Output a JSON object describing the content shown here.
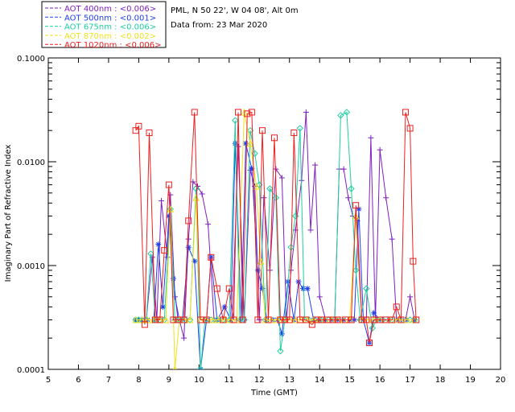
{
  "chart_data": {
    "type": "line",
    "info": {
      "site": "PML, N 50 22', W 04 08', Alt 0m",
      "date": "Data from: 23 Mar 2020"
    },
    "xlabel": "Time (GMT)",
    "ylabel": "Imaginary Part of Refractive Index",
    "xlim": [
      5,
      20
    ],
    "ylim": [
      0.0001,
      0.1
    ],
    "yscale": "log",
    "xticks": [
      "5",
      "6",
      "7",
      "8",
      "9",
      "10",
      "11",
      "12",
      "13",
      "14",
      "15",
      "16",
      "17",
      "18",
      "19",
      "20"
    ],
    "yticks": [
      {
        "v": 0.1,
        "label": "0.1000"
      },
      {
        "v": 0.01,
        "label": "0.0100"
      },
      {
        "v": 0.001,
        "label": "0.0010"
      },
      {
        "v": 0.0001,
        "label": "0.0001"
      }
    ],
    "legend_position": "top-left",
    "series": [
      {
        "name": "AOT 400nm : <0.006>",
        "color": "#7f1fbf",
        "marker": "plus",
        "points": [
          [
            7.9,
            0.0003
          ],
          [
            8.0,
            0.0003
          ],
          [
            8.1,
            0.0003
          ],
          [
            8.25,
            0.0003
          ],
          [
            8.45,
            0.0012
          ],
          [
            8.6,
            0.0003
          ],
          [
            8.75,
            0.0042
          ],
          [
            8.95,
            0.0012
          ],
          [
            9.05,
            0.0048
          ],
          [
            9.2,
            0.0005
          ],
          [
            9.35,
            0.0003
          ],
          [
            9.5,
            0.0002
          ],
          [
            9.65,
            0.0018
          ],
          [
            9.8,
            0.0064
          ],
          [
            9.95,
            0.0058
          ],
          [
            10.1,
            0.0049
          ],
          [
            10.3,
            0.0025
          ],
          [
            10.5,
            0.0003
          ],
          [
            10.7,
            0.0003
          ],
          [
            10.9,
            0.0003
          ],
          [
            11.1,
            0.0003
          ],
          [
            11.3,
            0.014
          ],
          [
            11.5,
            0.0003
          ],
          [
            11.7,
            0.0083
          ],
          [
            11.85,
            0.0058
          ],
          [
            12.0,
            0.0003
          ],
          [
            12.15,
            0.0045
          ],
          [
            12.35,
            0.0009
          ],
          [
            12.55,
            0.0085
          ],
          [
            12.75,
            0.007
          ],
          [
            12.9,
            0.0003
          ],
          [
            13.05,
            0.0009
          ],
          [
            13.2,
            0.0022
          ],
          [
            13.4,
            0.0066
          ],
          [
            13.55,
            0.03
          ],
          [
            13.7,
            0.0022
          ],
          [
            13.85,
            0.0093
          ],
          [
            14.0,
            0.0005
          ],
          [
            14.2,
            0.0003
          ],
          [
            14.35,
            0.0003
          ],
          [
            14.5,
            0.0003
          ],
          [
            14.65,
            0.0085
          ],
          [
            14.8,
            0.0085
          ],
          [
            14.95,
            0.0045
          ],
          [
            15.1,
            0.003
          ],
          [
            15.25,
            0.0027
          ],
          [
            15.4,
            0.0003
          ],
          [
            15.55,
            0.0003
          ],
          [
            15.7,
            0.017
          ],
          [
            15.85,
            0.0003
          ],
          [
            16.0,
            0.013
          ],
          [
            16.2,
            0.0045
          ],
          [
            16.4,
            0.0018
          ],
          [
            16.55,
            0.0003
          ],
          [
            16.7,
            0.0003
          ],
          [
            16.85,
            0.0003
          ],
          [
            17.0,
            0.0005
          ],
          [
            17.15,
            0.0003
          ]
        ]
      },
      {
        "name": "AOT 500nm : <0.001>",
        "color": "#1f3fef",
        "marker": "star",
        "points": [
          [
            7.9,
            0.0003
          ],
          [
            8.0,
            0.0003
          ],
          [
            8.1,
            0.0003
          ],
          [
            8.3,
            0.0003
          ],
          [
            8.5,
            0.0003
          ],
          [
            8.65,
            0.0016
          ],
          [
            8.8,
            0.0004
          ],
          [
            9.0,
            0.003
          ],
          [
            9.15,
            0.00075
          ],
          [
            9.3,
            0.0003
          ],
          [
            9.45,
            0.0003
          ],
          [
            9.65,
            0.0015
          ],
          [
            9.85,
            0.0011
          ],
          [
            10.05,
            0.0001
          ],
          [
            10.25,
            0.0003
          ],
          [
            10.4,
            0.0012
          ],
          [
            10.6,
            0.0003
          ],
          [
            10.85,
            0.0004
          ],
          [
            11.05,
            0.0003
          ],
          [
            11.2,
            0.015
          ],
          [
            11.4,
            0.0003
          ],
          [
            11.55,
            0.015
          ],
          [
            11.75,
            0.0086
          ],
          [
            11.95,
            0.0009
          ],
          [
            12.1,
            0.0006
          ],
          [
            12.25,
            0.0003
          ],
          [
            12.45,
            0.0003
          ],
          [
            12.6,
            0.0003
          ],
          [
            12.75,
            0.00022
          ],
          [
            12.95,
            0.0007
          ],
          [
            13.15,
            0.0003
          ],
          [
            13.3,
            0.0007
          ],
          [
            13.45,
            0.0006
          ],
          [
            13.6,
            0.0006
          ],
          [
            13.8,
            0.0003
          ],
          [
            14.0,
            0.0003
          ],
          [
            14.2,
            0.0003
          ],
          [
            14.4,
            0.0003
          ],
          [
            14.6,
            0.0003
          ],
          [
            14.8,
            0.0003
          ],
          [
            15.0,
            0.0003
          ],
          [
            15.15,
            0.0003
          ],
          [
            15.3,
            0.0035
          ],
          [
            15.45,
            0.0003
          ],
          [
            15.65,
            0.00018
          ],
          [
            15.8,
            0.00035
          ],
          [
            16.0,
            0.0003
          ],
          [
            16.3,
            0.0003
          ],
          [
            16.6,
            0.0003
          ],
          [
            16.9,
            0.0003
          ],
          [
            17.15,
            0.0003
          ]
        ]
      },
      {
        "name": "AOT 675nm : <0.006>",
        "color": "#1fcf9f",
        "marker": "diamond",
        "points": [
          [
            7.9,
            0.0003
          ],
          [
            8.0,
            0.0003
          ],
          [
            8.1,
            0.0003
          ],
          [
            8.25,
            0.0003
          ],
          [
            8.4,
            0.0013
          ],
          [
            8.55,
            0.0003
          ],
          [
            8.7,
            0.0003
          ],
          [
            8.85,
            0.0003
          ],
          [
            9.05,
            0.0035
          ],
          [
            9.2,
            0.0003
          ],
          [
            9.35,
            0.0003
          ],
          [
            9.55,
            0.0003
          ],
          [
            9.7,
            0.0003
          ],
          [
            9.9,
            0.0055
          ],
          [
            10.05,
            0.0001
          ],
          [
            10.2,
            0.0003
          ],
          [
            10.4,
            0.0003
          ],
          [
            10.6,
            0.0003
          ],
          [
            10.8,
            0.0003
          ],
          [
            11.0,
            0.0003
          ],
          [
            11.2,
            0.025
          ],
          [
            11.35,
            0.0003
          ],
          [
            11.5,
            0.0003
          ],
          [
            11.7,
            0.02
          ],
          [
            11.85,
            0.012
          ],
          [
            12.0,
            0.006
          ],
          [
            12.2,
            0.0003
          ],
          [
            12.35,
            0.0055
          ],
          [
            12.55,
            0.0045
          ],
          [
            12.7,
            0.00015
          ],
          [
            12.85,
            0.0003
          ],
          [
            13.05,
            0.0015
          ],
          [
            13.2,
            0.003
          ],
          [
            13.35,
            0.021
          ],
          [
            13.5,
            0.0003
          ],
          [
            13.65,
            0.0003
          ],
          [
            13.85,
            0.0003
          ],
          [
            14.05,
            0.0003
          ],
          [
            14.3,
            0.0003
          ],
          [
            14.5,
            0.0003
          ],
          [
            14.7,
            0.028
          ],
          [
            14.9,
            0.03
          ],
          [
            15.05,
            0.0055
          ],
          [
            15.2,
            0.0009
          ],
          [
            15.35,
            0.0003
          ],
          [
            15.55,
            0.0006
          ],
          [
            15.75,
            0.00025
          ],
          [
            15.9,
            0.0003
          ],
          [
            16.1,
            0.0003
          ],
          [
            16.4,
            0.0003
          ],
          [
            16.7,
            0.0003
          ],
          [
            17.0,
            0.0003
          ],
          [
            17.15,
            0.0003
          ]
        ]
      },
      {
        "name": "AOT 870nm : <0.002>",
        "color": "#f0e020",
        "marker": "triangle",
        "points": [
          [
            7.9,
            0.0003
          ],
          [
            8.1,
            0.0003
          ],
          [
            8.3,
            0.0003
          ],
          [
            8.5,
            0.0003
          ],
          [
            8.7,
            0.0003
          ],
          [
            8.9,
            0.0003
          ],
          [
            9.05,
            0.0035
          ],
          [
            9.2,
            0.0001
          ],
          [
            9.35,
            0.0003
          ],
          [
            9.5,
            0.0003
          ],
          [
            9.7,
            0.0003
          ],
          [
            9.9,
            0.0045
          ],
          [
            10.05,
            0.0003
          ],
          [
            10.25,
            0.0003
          ],
          [
            10.45,
            0.0003
          ],
          [
            10.65,
            0.0003
          ],
          [
            10.85,
            0.0003
          ],
          [
            11.05,
            0.0003
          ],
          [
            11.25,
            0.0003
          ],
          [
            11.5,
            0.03
          ],
          [
            11.7,
            0.015
          ],
          [
            11.9,
            0.0058
          ],
          [
            12.05,
            0.0011
          ],
          [
            12.2,
            0.0003
          ],
          [
            12.4,
            0.0003
          ],
          [
            12.6,
            0.0003
          ],
          [
            12.8,
            0.0003
          ],
          [
            13.0,
            0.0003
          ],
          [
            13.2,
            0.0003
          ],
          [
            13.4,
            0.0003
          ],
          [
            13.6,
            0.0003
          ],
          [
            13.8,
            0.0003
          ],
          [
            14.0,
            0.0003
          ],
          [
            14.2,
            0.0003
          ],
          [
            14.4,
            0.0003
          ],
          [
            14.6,
            0.0003
          ],
          [
            14.8,
            0.0003
          ],
          [
            15.0,
            0.0003
          ],
          [
            15.2,
            0.003
          ],
          [
            15.4,
            0.0003
          ],
          [
            15.6,
            0.0003
          ],
          [
            15.8,
            0.0003
          ],
          [
            16.0,
            0.0003
          ],
          [
            16.3,
            0.0003
          ],
          [
            16.6,
            0.0003
          ],
          [
            16.9,
            0.0003
          ],
          [
            17.15,
            0.0003
          ]
        ]
      },
      {
        "name": "AOT 1020nm : <0.006>",
        "color": "#ef1f1f",
        "marker": "square",
        "points": [
          [
            7.9,
            0.02
          ],
          [
            8.0,
            0.022
          ],
          [
            8.2,
            0.00027
          ],
          [
            8.35,
            0.019
          ],
          [
            8.55,
            0.0003
          ],
          [
            8.7,
            0.0003
          ],
          [
            8.85,
            0.0014
          ],
          [
            9.0,
            0.006
          ],
          [
            9.15,
            0.0003
          ],
          [
            9.3,
            0.0003
          ],
          [
            9.5,
            0.0003
          ],
          [
            9.65,
            0.0027
          ],
          [
            9.85,
            0.03
          ],
          [
            10.05,
            0.0003
          ],
          [
            10.25,
            0.0003
          ],
          [
            10.4,
            0.0012
          ],
          [
            10.6,
            0.0006
          ],
          [
            10.8,
            0.0003
          ],
          [
            11.0,
            0.0006
          ],
          [
            11.15,
            0.0003
          ],
          [
            11.3,
            0.03
          ],
          [
            11.45,
            0.0003
          ],
          [
            11.6,
            0.029
          ],
          [
            11.75,
            0.03
          ],
          [
            11.95,
            0.0003
          ],
          [
            12.1,
            0.02
          ],
          [
            12.3,
            0.0003
          ],
          [
            12.5,
            0.017
          ],
          [
            12.7,
            0.0003
          ],
          [
            12.85,
            0.0003
          ],
          [
            13.0,
            0.0003
          ],
          [
            13.15,
            0.019
          ],
          [
            13.35,
            0.0003
          ],
          [
            13.55,
            0.0003
          ],
          [
            13.75,
            0.00027
          ],
          [
            13.9,
            0.0003
          ],
          [
            14.05,
            0.0003
          ],
          [
            14.25,
            0.0003
          ],
          [
            14.45,
            0.0003
          ],
          [
            14.6,
            0.0003
          ],
          [
            14.85,
            0.0003
          ],
          [
            15.05,
            0.0003
          ],
          [
            15.2,
            0.0038
          ],
          [
            15.4,
            0.0003
          ],
          [
            15.55,
            0.0003
          ],
          [
            15.65,
            0.00018
          ],
          [
            15.8,
            0.0003
          ],
          [
            16.0,
            0.0003
          ],
          [
            16.2,
            0.0003
          ],
          [
            16.4,
            0.0003
          ],
          [
            16.55,
            0.0004
          ],
          [
            16.7,
            0.0003
          ],
          [
            16.85,
            0.03
          ],
          [
            17.0,
            0.021
          ],
          [
            17.1,
            0.0011
          ],
          [
            17.2,
            0.0003
          ]
        ]
      }
    ]
  }
}
